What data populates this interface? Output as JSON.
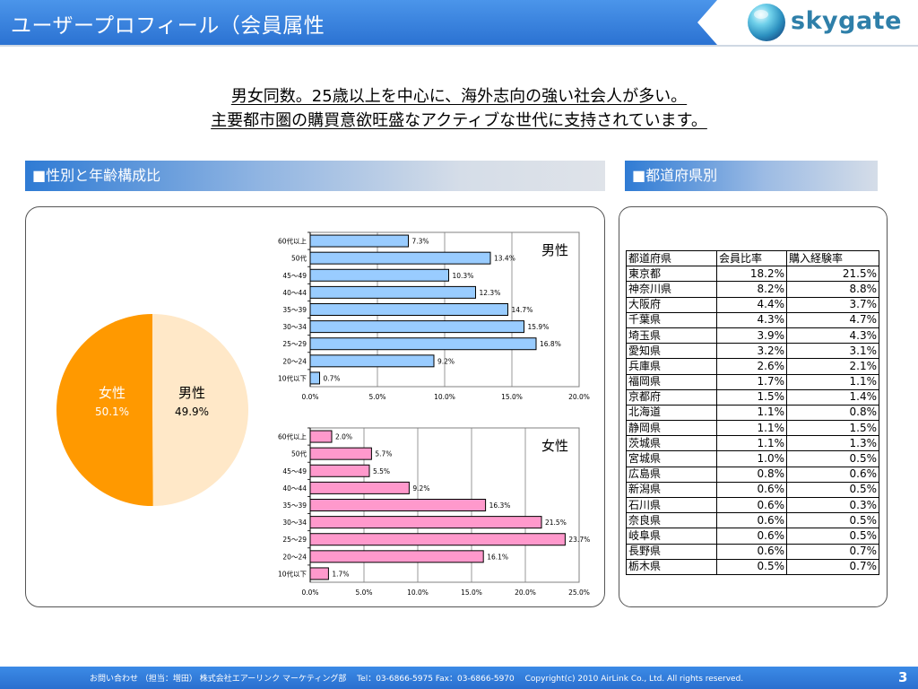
{
  "header": {
    "title": "ユーザープロフィール（会員属性",
    "logo_text": "skygate"
  },
  "headline": {
    "line1": "男女同数。25歳以上を中心に、海外志向の強い社会人が多い。",
    "line2": "主要都市圏の購買意欲旺盛なアクティブな世代に支持されています。"
  },
  "sections": {
    "left_title": "■性別と年齢構成比",
    "right_title": "■都道府県別"
  },
  "colors": {
    "female_pie": "#ff9900",
    "male_pie": "#ffe8c8",
    "male_bar": "#99ccff",
    "female_bar": "#ff99cc",
    "header_blue": "#2f7bd4",
    "logo_blue": "#2e7fa9"
  },
  "chart_data": [
    {
      "type": "pie",
      "slices": [
        {
          "label": "女性",
          "value": 50.1,
          "value_label": "50.1%",
          "color": "#ff9900"
        },
        {
          "label": "男性",
          "value": 49.9,
          "value_label": "49.9%",
          "color": "#ffe8c8"
        }
      ]
    },
    {
      "type": "bar",
      "orientation": "horizontal",
      "title": "男性",
      "categories": [
        "60代以上",
        "50代",
        "45～49",
        "40～44",
        "35～39",
        "30～34",
        "25～29",
        "20～24",
        "10代以下"
      ],
      "values": [
        7.3,
        13.4,
        10.3,
        12.3,
        14.7,
        15.9,
        16.8,
        9.2,
        0.7
      ],
      "value_labels": [
        "7.3%",
        "13.4%",
        "10.3%",
        "12.3%",
        "14.7%",
        "15.9%",
        "16.8%",
        "9.2%",
        "0.7%"
      ],
      "xlim": [
        0,
        20
      ],
      "xticks": [
        "0.0%",
        "5.0%",
        "10.0%",
        "15.0%",
        "20.0%"
      ],
      "color": "#99ccff"
    },
    {
      "type": "bar",
      "orientation": "horizontal",
      "title": "女性",
      "categories": [
        "60代以上",
        "50代",
        "45～49",
        "40～44",
        "35～39",
        "30～34",
        "25～29",
        "20～24",
        "10代以下"
      ],
      "values": [
        2.0,
        5.7,
        5.5,
        9.2,
        16.3,
        21.5,
        23.7,
        16.1,
        1.7
      ],
      "value_labels": [
        "2.0%",
        "5.7%",
        "5.5%",
        "9.2%",
        "16.3%",
        "21.5%",
        "23.7%",
        "16.1%",
        "1.7%"
      ],
      "xlim": [
        0,
        25
      ],
      "xticks": [
        "0.0%",
        "5.0%",
        "10.0%",
        "15.0%",
        "20.0%",
        "25.0%"
      ],
      "color": "#ff99cc"
    },
    {
      "type": "table",
      "columns": [
        "都道府県",
        "会員比率",
        "購入経験率"
      ],
      "rows": [
        [
          "東京都",
          "18.2%",
          "21.5%"
        ],
        [
          "神奈川県",
          "8.2%",
          "8.8%"
        ],
        [
          "大阪府",
          "4.4%",
          "3.7%"
        ],
        [
          "千葉県",
          "4.3%",
          "4.7%"
        ],
        [
          "埼玉県",
          "3.9%",
          "4.3%"
        ],
        [
          "愛知県",
          "3.2%",
          "3.1%"
        ],
        [
          "兵庫県",
          "2.6%",
          "2.1%"
        ],
        [
          "福岡県",
          "1.7%",
          "1.1%"
        ],
        [
          "京都府",
          "1.5%",
          "1.4%"
        ],
        [
          "北海道",
          "1.1%",
          "0.8%"
        ],
        [
          "静岡県",
          "1.1%",
          "1.5%"
        ],
        [
          "茨城県",
          "1.1%",
          "1.3%"
        ],
        [
          "宮城県",
          "1.0%",
          "0.5%"
        ],
        [
          "広島県",
          "0.8%",
          "0.6%"
        ],
        [
          "新潟県",
          "0.6%",
          "0.5%"
        ],
        [
          "石川県",
          "0.6%",
          "0.3%"
        ],
        [
          "奈良県",
          "0.6%",
          "0.5%"
        ],
        [
          "岐阜県",
          "0.6%",
          "0.5%"
        ],
        [
          "長野県",
          "0.6%",
          "0.7%"
        ],
        [
          "栃木県",
          "0.5%",
          "0.7%"
        ]
      ]
    }
  ],
  "footer": {
    "text": "お問い合わせ （担当：増田） 株式会社エアーリンク マーケティング部　 Tel：03-6866-5975 Fax：03-6866-5970　 Copyright(c) 2010 AirLink Co., Ltd. All rights reserved.",
    "page": "3"
  }
}
